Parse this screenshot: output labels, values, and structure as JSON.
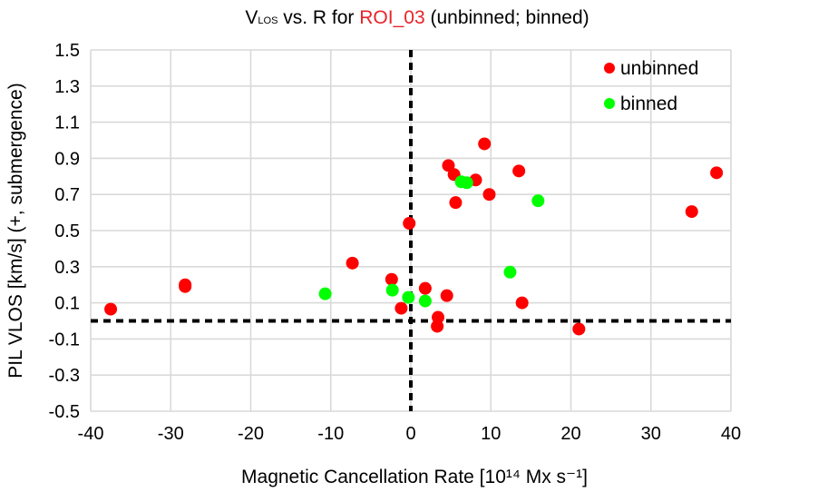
{
  "chart_data": {
    "type": "scatter",
    "title": {
      "v_main": "V",
      "v_sub": "LOS",
      "middle": " vs. R for ",
      "roi": "ROI_03",
      "tail": " (unbinned; binned)"
    },
    "title_colors": {
      "default": "#000000",
      "roi": "#e8242a"
    },
    "xlabel": "Magnetic Cancellation Rate [10¹⁴ Mx s⁻¹]",
    "ylabel": "PIL VLOS [km/s] (+, submergence)",
    "xlim": [
      -40,
      40
    ],
    "ylim": [
      -0.5,
      1.5
    ],
    "x_ticks": [
      -40,
      -30,
      -20,
      -10,
      0,
      10,
      20,
      30,
      40
    ],
    "x_tick_labels": [
      "-40",
      "-30",
      "-20",
      "-10",
      "0",
      "10",
      "20",
      "30",
      "40"
    ],
    "y_ticks": [
      -0.5,
      -0.3,
      -0.1,
      0.1,
      0.3,
      0.5,
      0.7,
      0.9,
      1.1,
      1.3,
      1.5
    ],
    "y_tick_labels": [
      "-0.5",
      "-0.3",
      "-0.1",
      "0.1",
      "0.3",
      "0.5",
      "0.7",
      "0.9",
      "1.1",
      "1.3",
      "1.5"
    ],
    "grid": true,
    "reference_lines": {
      "x": 0,
      "y": 0
    },
    "legend": {
      "position": "top-right"
    },
    "series": [
      {
        "name": "unbinned",
        "color": "#ff0000",
        "points": [
          {
            "x": -37.5,
            "y": 0.065
          },
          {
            "x": -28.2,
            "y": 0.2
          },
          {
            "x": -28.2,
            "y": 0.19
          },
          {
            "x": -7.3,
            "y": 0.32
          },
          {
            "x": -2.4,
            "y": 0.23
          },
          {
            "x": -1.2,
            "y": 0.07
          },
          {
            "x": -0.2,
            "y": 0.54
          },
          {
            "x": 1.8,
            "y": 0.18
          },
          {
            "x": 3.4,
            "y": 0.02
          },
          {
            "x": 3.3,
            "y": -0.03
          },
          {
            "x": 4.5,
            "y": 0.14
          },
          {
            "x": 4.7,
            "y": 0.86
          },
          {
            "x": 5.4,
            "y": 0.81
          },
          {
            "x": 5.6,
            "y": 0.655
          },
          {
            "x": 8.1,
            "y": 0.78
          },
          {
            "x": 9.2,
            "y": 0.98
          },
          {
            "x": 9.8,
            "y": 0.7
          },
          {
            "x": 13.5,
            "y": 0.83
          },
          {
            "x": 13.9,
            "y": 0.1
          },
          {
            "x": 21.0,
            "y": -0.045
          },
          {
            "x": 35.1,
            "y": 0.605
          },
          {
            "x": 38.2,
            "y": 0.82
          }
        ]
      },
      {
        "name": "binned",
        "color": "#00ff00",
        "points": [
          {
            "x": -10.7,
            "y": 0.15
          },
          {
            "x": -2.3,
            "y": 0.17
          },
          {
            "x": -0.3,
            "y": 0.13
          },
          {
            "x": 1.8,
            "y": 0.11
          },
          {
            "x": 6.3,
            "y": 0.77
          },
          {
            "x": 7.0,
            "y": 0.765
          },
          {
            "x": 12.4,
            "y": 0.27
          },
          {
            "x": 15.9,
            "y": 0.665
          }
        ]
      }
    ]
  }
}
